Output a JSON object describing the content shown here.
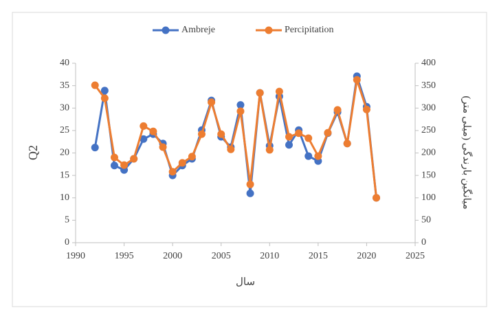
{
  "chart_data": {
    "type": "line",
    "x_label": "سال",
    "y_label": "Q2",
    "y2_label": "میانگین بارندگی (میلی متر)",
    "x": [
      1992,
      1993,
      1994,
      1995,
      1996,
      1997,
      1998,
      1999,
      2000,
      2001,
      2002,
      2003,
      2004,
      2005,
      2006,
      2007,
      2008,
      2009,
      2010,
      2011,
      2012,
      2013,
      2014,
      2015,
      2016,
      2017,
      2018,
      2019,
      2020,
      2021
    ],
    "series": [
      {
        "name": "Ambreje",
        "color": "#4472c4",
        "values": [
          21.2,
          33.9,
          17.2,
          16.2,
          18.7,
          23.1,
          24.2,
          22.1,
          15.0,
          17.2,
          18.7,
          25.1,
          31.7,
          23.6,
          21.3,
          30.7,
          11.0,
          33.4,
          21.6,
          32.6,
          21.8,
          25.1,
          19.3,
          18.2,
          24.4,
          29.1,
          22.1,
          37.1,
          30.3,
          10.0
        ]
      },
      {
        "name": "Percipitation",
        "color": "#ed7d31",
        "axis": "y2",
        "values": [
          351,
          322,
          190,
          173,
          187,
          260,
          248,
          213,
          158,
          178,
          192,
          242,
          313,
          242,
          208,
          293,
          130,
          334,
          207,
          337,
          236,
          244,
          233,
          193,
          245,
          296,
          221,
          363,
          297,
          100
        ]
      }
    ],
    "xlim": [
      1990,
      2025
    ],
    "xticks": [
      1990,
      1995,
      2000,
      2005,
      2010,
      2015,
      2020,
      2025
    ],
    "ylim": [
      0,
      40
    ],
    "yticks": [
      0,
      5,
      10,
      15,
      20,
      25,
      30,
      35,
      40
    ],
    "y2lim": [
      0,
      400
    ],
    "y2ticks": [
      0,
      50,
      100,
      150,
      200,
      250,
      300,
      350,
      400
    ],
    "grid": false,
    "legend": "top"
  }
}
